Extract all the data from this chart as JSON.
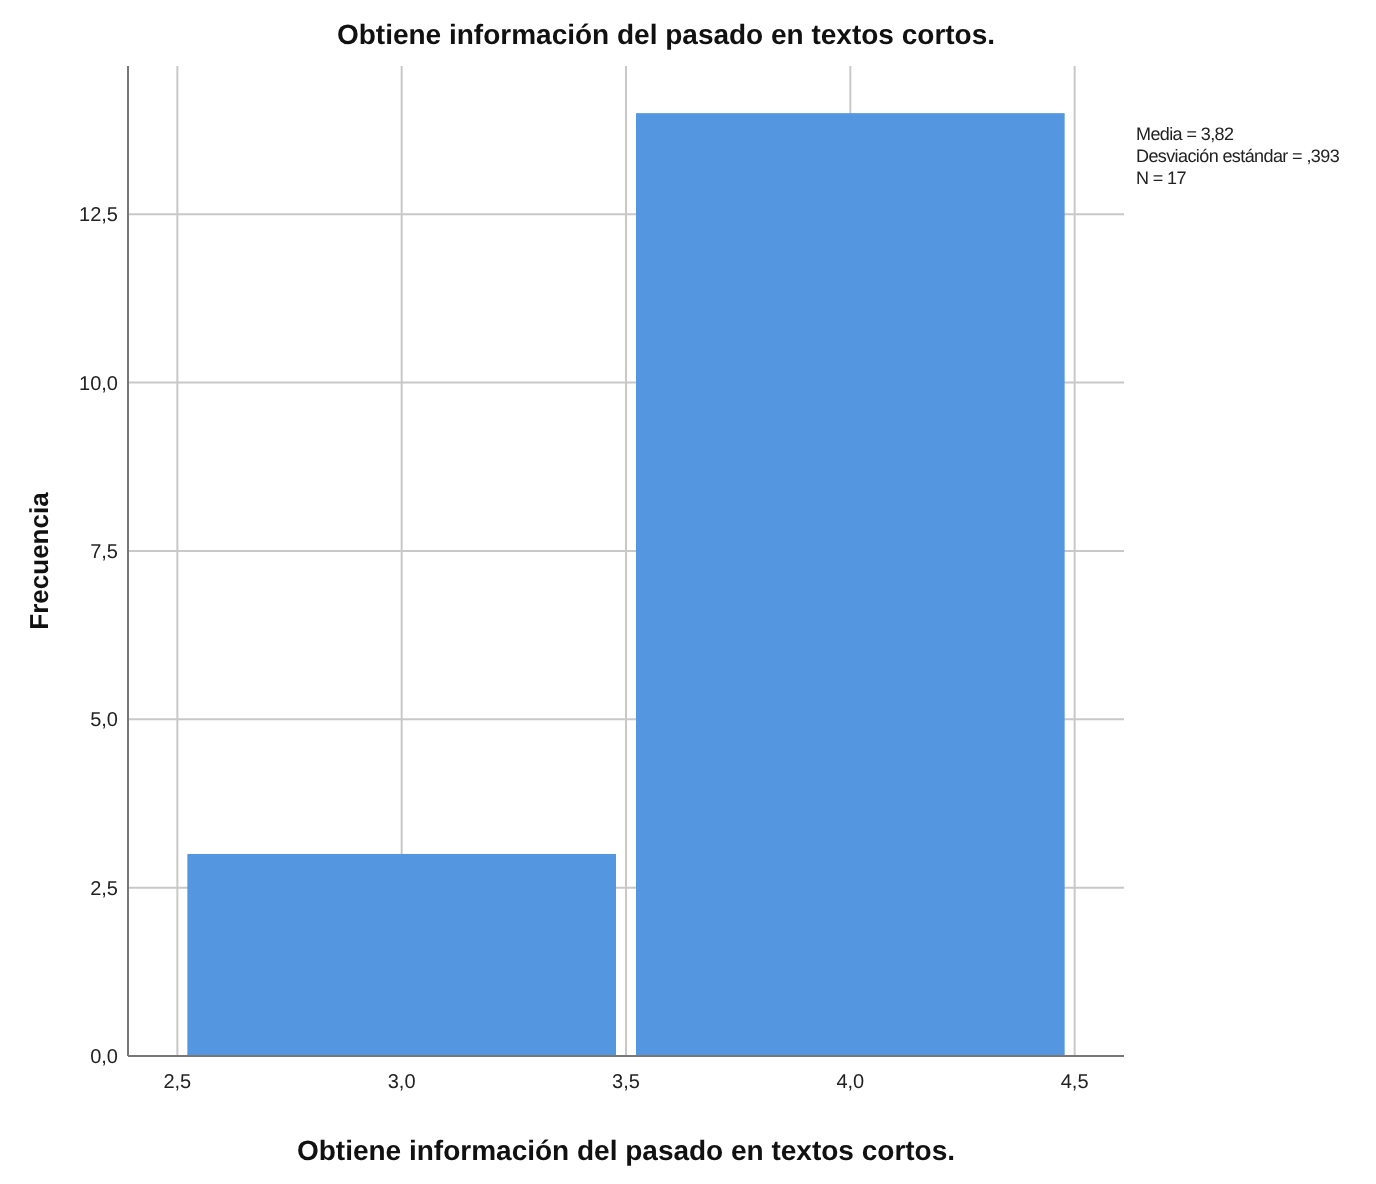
{
  "chart_data": {
    "type": "histogram",
    "title": "Obtiene información del pasado en textos cortos.",
    "xlabel": "Obtiene información del pasado en textos cortos.",
    "ylabel": "Frecuencia",
    "bins": [
      2.5,
      3.5,
      4.5
    ],
    "values": [
      3,
      14
    ],
    "color": "#5596e0",
    "xlim": [
      2.39,
      4.61
    ],
    "xticks": [
      {
        "value": 2.5,
        "label": "2,5"
      },
      {
        "value": 3,
        "label": "3,0"
      },
      {
        "value": 3.5,
        "label": "3,5"
      },
      {
        "value": 4,
        "label": "4,0"
      },
      {
        "value": 4.5,
        "label": "4,5"
      }
    ],
    "ylim": [
      0,
      14.7
    ],
    "yticks": [
      {
        "value": 0,
        "label": "0,0"
      },
      {
        "value": 2.5,
        "label": "2,5"
      },
      {
        "value": 5,
        "label": "5,0"
      },
      {
        "value": 7.5,
        "label": "7,5"
      },
      {
        "value": 10,
        "label": "10,0"
      },
      {
        "value": 12.5,
        "label": "12,5"
      }
    ],
    "grid": true,
    "annotations": [
      "Media = 3,82",
      "Desviación estándar = ,393",
      "N = 17"
    ]
  }
}
